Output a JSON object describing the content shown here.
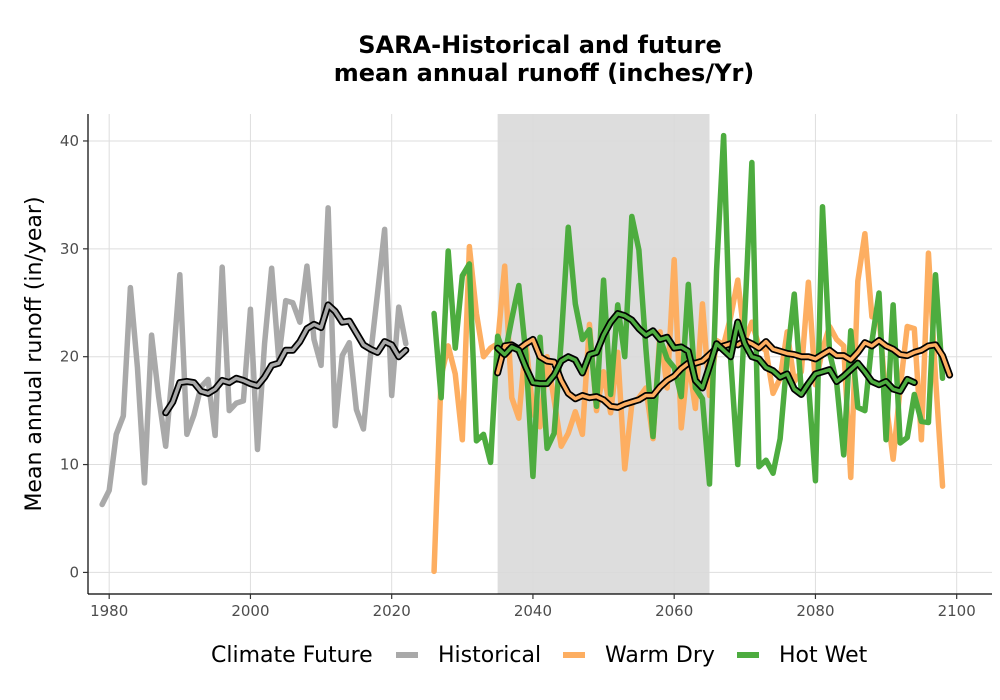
{
  "chart_data": {
    "type": "line",
    "title": "SARA-Historical and future",
    "subtitle": "mean annual runoff (inches/Yr)",
    "xlabel": "",
    "ylabel": "Mean annual runoff (in/year)",
    "xlim": [
      1977,
      2105
    ],
    "ylim": [
      -2,
      42.5
    ],
    "x_ticks": [
      1980,
      2000,
      2020,
      2040,
      2060,
      2080,
      2100
    ],
    "y_ticks": [
      0,
      10,
      20,
      30,
      40
    ],
    "grid": true,
    "shaded_period": [
      2035,
      2065
    ],
    "legend": {
      "title": "Climate Future",
      "position": "bottom",
      "entries": [
        "Historical",
        "Warm Dry",
        "Hot Wet"
      ]
    },
    "colors": {
      "Historical": "#a9a9a9",
      "Warm Dry": "#fdae61",
      "Hot Wet": "#4dac3f",
      "smooth_line": "#000000",
      "shade": "#d9d9d9",
      "grid": "#dedede"
    },
    "series": [
      {
        "name": "Historical",
        "x_start": 1979,
        "values": [
          6.3,
          7.6,
          12.8,
          14.5,
          26.4,
          19.0,
          8.3,
          22.0,
          16.3,
          11.7,
          19.0,
          27.6,
          12.8,
          14.6,
          17.2,
          17.9,
          12.7,
          28.3,
          15.0,
          15.7,
          15.9,
          24.4,
          11.4,
          21.2,
          28.2,
          19.8,
          25.2,
          25.0,
          23.2,
          28.4,
          21.6,
          19.2,
          33.8,
          13.6,
          20.1,
          21.3,
          15.1,
          13.3,
          20.1,
          25.9,
          31.8,
          16.4,
          24.6,
          21.2
        ]
      },
      {
        "name": "Warm Dry",
        "x_start": 2026,
        "values": [
          0.1,
          18.2,
          21.0,
          18.4,
          12.3,
          30.2,
          24.0,
          20.0,
          20.8,
          21.2,
          28.4,
          16.2,
          14.3,
          21.4,
          14.9,
          13.5,
          20.0,
          16.0,
          11.7,
          12.9,
          14.9,
          12.8,
          23.0,
          15.0,
          18.6,
          14.8,
          20.4,
          9.6,
          15.6,
          16.2,
          17.1,
          12.4,
          22.3,
          17.1,
          29.0,
          13.4,
          19.8,
          15.2,
          24.9,
          16.4,
          21.5,
          21.1,
          23.7,
          27.1,
          21.5,
          23.2,
          21.0,
          20.6,
          16.6,
          18.0,
          22.3,
          17.7,
          18.6,
          26.9,
          17.4,
          20.7,
          22.8,
          21.6,
          21.0,
          8.8,
          27.0,
          31.4,
          23.7,
          23.9,
          15.8,
          10.5,
          17.1,
          22.8,
          22.6,
          12.3,
          29.6,
          18.1,
          8.0
        ]
      },
      {
        "name": "Hot Wet",
        "x_start": 2026,
        "values": [
          24.0,
          16.2,
          29.8,
          20.8,
          27.5,
          28.6,
          12.2,
          12.8,
          10.2,
          21.9,
          20.1,
          23.5,
          26.6,
          20.2,
          8.9,
          21.8,
          11.5,
          12.9,
          21.5,
          32.0,
          24.9,
          21.6,
          22.5,
          15.4,
          27.1,
          16.5,
          24.8,
          20.0,
          33.0,
          29.9,
          20.7,
          12.6,
          21.7,
          19.8,
          19.0,
          16.3,
          26.7,
          17.1,
          16.1,
          8.2,
          28.0,
          40.5,
          19.7,
          10.0,
          23.8,
          38.0,
          9.8,
          10.4,
          9.2,
          12.4,
          19.9,
          25.8,
          16.8,
          17.6,
          8.5,
          33.9,
          20.4,
          17.6,
          10.9,
          22.4,
          15.3,
          15.0,
          21.4,
          25.9,
          12.3,
          24.8,
          12.0,
          12.5,
          16.5,
          14.0,
          13.9,
          27.6,
          18.0
        ]
      },
      {
        "name": "Historical smoothed",
        "x_start": 1988,
        "values": [
          14.8,
          15.8,
          17.6,
          17.7,
          17.6,
          16.8,
          16.6,
          17.0,
          17.8,
          17.6,
          18.0,
          17.8,
          17.5,
          17.3,
          18.1,
          19.2,
          19.4,
          20.6,
          20.6,
          21.4,
          22.6,
          23.0,
          22.7,
          24.8,
          24.2,
          23.2,
          23.3,
          22.2,
          21.1,
          20.7,
          20.4,
          21.4,
          21.1,
          20.0,
          20.6
        ]
      },
      {
        "name": "Warm Dry smoothed",
        "x_start": 2035,
        "values": [
          18.5,
          21.0,
          21.1,
          20.7,
          21.2,
          21.6,
          20.0,
          19.6,
          19.5,
          17.8,
          16.6,
          16.1,
          16.4,
          16.2,
          16.3,
          16.0,
          15.4,
          15.3,
          15.6,
          15.8,
          16.0,
          16.4,
          16.4,
          17.2,
          17.8,
          18.2,
          18.9,
          19.4,
          19.4,
          19.6,
          20.2,
          20.8,
          21.0,
          21.2,
          21.1,
          21.5,
          21.2,
          20.8,
          21.4,
          20.7,
          20.5,
          20.3,
          20.2,
          20.0,
          20.0,
          19.8,
          20.2,
          20.6,
          20.1,
          20.1,
          19.7,
          20.4,
          21.3,
          21.0,
          21.5,
          21.0,
          20.7,
          20.2,
          20.1,
          20.4,
          20.6,
          21.0,
          21.1,
          20.1,
          18.3
        ]
      },
      {
        "name": "Hot Wet smoothed",
        "x_start": 2035,
        "values": [
          20.8,
          20.2,
          20.9,
          20.6,
          19.0,
          17.6,
          17.5,
          17.5,
          18.3,
          19.6,
          20.0,
          19.7,
          18.5,
          20.2,
          20.4,
          22.0,
          23.2,
          24.0,
          23.8,
          23.4,
          22.6,
          22.0,
          22.4,
          21.6,
          21.8,
          20.8,
          20.9,
          20.5,
          17.8,
          17.1,
          19.1,
          21.2,
          20.6,
          20.0,
          23.2,
          21.2,
          20.0,
          19.8,
          19.0,
          18.7,
          18.1,
          18.4,
          17.0,
          16.5,
          17.5,
          18.4,
          18.6,
          18.8,
          17.7,
          18.2,
          18.8,
          19.4,
          18.6,
          17.7,
          17.4,
          17.7,
          17.0,
          16.8,
          17.9,
          17.6
        ]
      }
    ]
  }
}
